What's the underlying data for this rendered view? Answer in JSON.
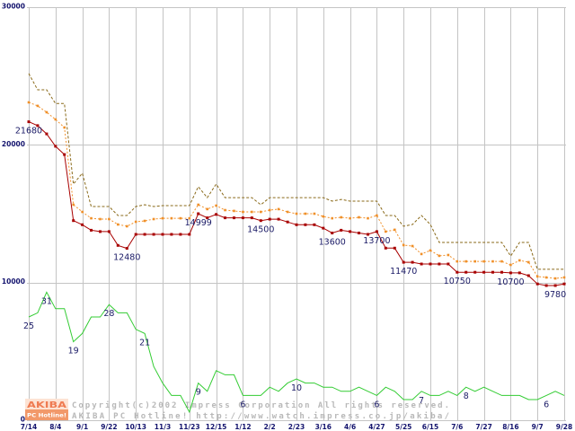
{
  "chart_data": {
    "type": "line",
    "x_tick_labels": [
      "7/14",
      "8/4",
      "9/1",
      "9/22",
      "10/13",
      "11/3",
      "11/23",
      "12/15",
      "1/12",
      "2/2",
      "2/23",
      "3/16",
      "4/6",
      "4/27",
      "5/25",
      "6/15",
      "7/6",
      "7/27",
      "8/16",
      "9/7",
      "9/28"
    ],
    "x_tick_index": [
      0,
      3,
      6,
      9,
      12,
      15,
      18,
      21,
      24,
      27,
      30,
      33,
      36,
      39,
      42,
      45,
      48,
      51,
      54,
      57,
      60
    ],
    "ylim": [
      0,
      30000
    ],
    "y_ticks": [
      0,
      10000,
      20000,
      30000
    ],
    "y_tick_labels": [
      "0",
      "10000",
      "20000",
      "30000"
    ],
    "secondary_ylim": [
      0,
      100
    ],
    "grid": true,
    "series": {
      "max_price": {
        "color": "#8a6a1a",
        "values": [
          25180,
          24000,
          24000,
          23000,
          23000,
          17150,
          17940,
          15520,
          15520,
          15520,
          14870,
          14870,
          15520,
          15650,
          15520,
          15590,
          15590,
          15590,
          15590,
          16960,
          16170,
          17150,
          16170,
          16170,
          16170,
          16170,
          15650,
          16170,
          16170,
          16170,
          16170,
          16170,
          16170,
          16170,
          15910,
          16040,
          15910,
          15910,
          15910,
          15910,
          14870,
          14870,
          14090,
          14220,
          14870,
          14220,
          12910,
          12910,
          12910,
          12910,
          12910,
          12910,
          12910,
          12910,
          11930,
          12910,
          12910,
          10960,
          10960,
          10960,
          10960
        ]
      },
      "average_price": {
        "color": "#f0902a",
        "values": [
          23090,
          22830,
          22370,
          21850,
          21260,
          15650,
          15130,
          14670,
          14610,
          14610,
          14220,
          14090,
          14410,
          14480,
          14610,
          14670,
          14670,
          14670,
          14670,
          15650,
          15330,
          15590,
          15260,
          15200,
          15130,
          15130,
          15130,
          15260,
          15330,
          15130,
          15000,
          15000,
          15000,
          14800,
          14670,
          14740,
          14670,
          14740,
          14670,
          14870,
          13700,
          13830,
          12720,
          12650,
          12070,
          12330,
          11940,
          12000,
          11540,
          11540,
          11540,
          11540,
          11540,
          11540,
          11280,
          11610,
          11480,
          10440,
          10370,
          10300,
          10370
        ]
      },
      "min_price": {
        "color": "#a80000",
        "values": [
          21680,
          21400,
          20800,
          19900,
          19300,
          14500,
          14200,
          13800,
          13700,
          13700,
          12700,
          12480,
          13500,
          13500,
          13500,
          13500,
          13500,
          13500,
          13500,
          14999,
          14700,
          14950,
          14700,
          14700,
          14700,
          14700,
          14500,
          14600,
          14600,
          14400,
          14200,
          14200,
          14200,
          13950,
          13600,
          13800,
          13700,
          13600,
          13500,
          13700,
          12500,
          12500,
          11470,
          11470,
          11350,
          11350,
          11350,
          11350,
          10750,
          10750,
          10750,
          10750,
          10750,
          10750,
          10700,
          10700,
          10500,
          9900,
          9780,
          9780,
          9900
        ]
      },
      "shop_count": {
        "color": "#33cc33",
        "values": [
          25,
          26,
          31,
          27,
          27,
          19,
          21,
          25,
          25,
          28,
          26,
          26,
          22,
          21,
          13,
          9,
          6,
          6,
          2,
          9,
          7,
          12,
          11,
          11,
          6,
          6,
          6,
          8,
          7,
          9,
          10,
          9,
          9,
          8,
          8,
          7,
          7,
          8,
          7,
          6,
          8,
          7,
          5,
          5,
          7,
          6,
          6,
          7,
          6,
          8,
          7,
          8,
          7,
          6,
          6,
          6,
          5,
          5,
          6,
          7,
          6
        ]
      }
    },
    "annotations": {
      "min_price": [
        {
          "index": 0,
          "text": "21680"
        },
        {
          "index": 11,
          "text": "12480"
        },
        {
          "index": 19,
          "text": "14999"
        },
        {
          "index": 26,
          "text": "14500"
        },
        {
          "index": 34,
          "text": "13600"
        },
        {
          "index": 39,
          "text": "13700"
        },
        {
          "index": 42,
          "text": "11470"
        },
        {
          "index": 48,
          "text": "10750"
        },
        {
          "index": 54,
          "text": "10700"
        },
        {
          "index": 59,
          "text": "9780"
        }
      ],
      "shop_count": [
        {
          "index": 0,
          "text": "25"
        },
        {
          "index": 2,
          "text": "31"
        },
        {
          "index": 5,
          "text": "19"
        },
        {
          "index": 9,
          "text": "28"
        },
        {
          "index": 13,
          "text": "21"
        },
        {
          "index": 19,
          "text": "9"
        },
        {
          "index": 24,
          "text": "6"
        },
        {
          "index": 30,
          "text": "10"
        },
        {
          "index": 39,
          "text": "6"
        },
        {
          "index": 44,
          "text": "7"
        },
        {
          "index": 49,
          "text": "8"
        },
        {
          "index": 58,
          "text": "6"
        }
      ]
    }
  },
  "watermark": {
    "copyright": "Copyright(c)2002 Impress Corporation All rights reserved.",
    "site": "AKIBA PC Hotline! http://www.watch.impress.co.jp/akiba/"
  },
  "logo": {
    "top": "AKIBA",
    "bottom": "PC Hotline!"
  },
  "colors": {
    "background": "#ffffff",
    "grid": "#c4c4c4",
    "axis_label": "#14146e",
    "data_label": "#1a1a66",
    "watermark": "#b8b8b8",
    "logo_top_bg": "#fde3d4",
    "logo_top_text": "#ef7b52",
    "logo_bottom_bg": "#f2996a",
    "logo_bottom_text": "#ffffff"
  }
}
